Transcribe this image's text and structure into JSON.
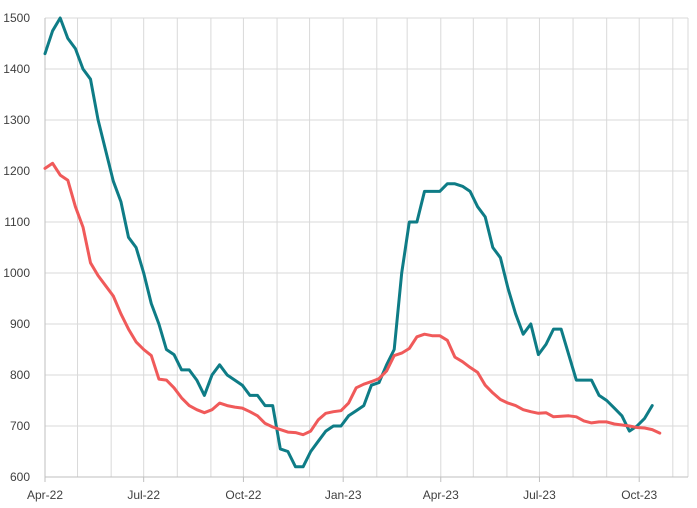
{
  "chart_data": {
    "type": "line",
    "title": "",
    "xlabel": "",
    "ylabel": "",
    "ylim": [
      600,
      1500
    ],
    "y_ticks": [
      600,
      700,
      800,
      900,
      1000,
      1100,
      1200,
      1300,
      1400,
      1500
    ],
    "x_range": [
      "2022-04-01",
      "2023-11-15"
    ],
    "x_ticks": [
      {
        "date": "2022-04-01",
        "label": "Apr-22"
      },
      {
        "date": "2022-07-01",
        "label": "Jul-22"
      },
      {
        "date": "2022-10-01",
        "label": "Oct-22"
      },
      {
        "date": "2023-01-01",
        "label": "Jan-23"
      },
      {
        "date": "2023-04-01",
        "label": "Apr-23"
      },
      {
        "date": "2023-07-01",
        "label": "Jul-23"
      },
      {
        "date": "2023-10-01",
        "label": "Oct-23"
      }
    ],
    "grid": true,
    "legend": "none",
    "series": [
      {
        "color": "#0e7c86",
        "points": [
          [
            "2022-04-01",
            1430
          ],
          [
            "2022-04-08",
            1475
          ],
          [
            "2022-04-15",
            1500
          ],
          [
            "2022-04-22",
            1460
          ],
          [
            "2022-04-29",
            1440
          ],
          [
            "2022-05-06",
            1400
          ],
          [
            "2022-05-13",
            1380
          ],
          [
            "2022-05-20",
            1300
          ],
          [
            "2022-05-27",
            1240
          ],
          [
            "2022-06-03",
            1180
          ],
          [
            "2022-06-10",
            1140
          ],
          [
            "2022-06-17",
            1070
          ],
          [
            "2022-06-24",
            1050
          ],
          [
            "2022-07-01",
            1000
          ],
          [
            "2022-07-08",
            940
          ],
          [
            "2022-07-15",
            900
          ],
          [
            "2022-07-22",
            850
          ],
          [
            "2022-07-29",
            840
          ],
          [
            "2022-08-05",
            810
          ],
          [
            "2022-08-12",
            810
          ],
          [
            "2022-08-19",
            790
          ],
          [
            "2022-08-26",
            760
          ],
          [
            "2022-09-02",
            800
          ],
          [
            "2022-09-09",
            820
          ],
          [
            "2022-09-16",
            800
          ],
          [
            "2022-09-23",
            790
          ],
          [
            "2022-09-30",
            780
          ],
          [
            "2022-10-07",
            760
          ],
          [
            "2022-10-14",
            760
          ],
          [
            "2022-10-21",
            740
          ],
          [
            "2022-10-28",
            740
          ],
          [
            "2022-11-04",
            655
          ],
          [
            "2022-11-11",
            650
          ],
          [
            "2022-11-18",
            620
          ],
          [
            "2022-11-25",
            620
          ],
          [
            "2022-12-02",
            650
          ],
          [
            "2022-12-09",
            670
          ],
          [
            "2022-12-16",
            690
          ],
          [
            "2022-12-23",
            700
          ],
          [
            "2022-12-30",
            700
          ],
          [
            "2023-01-06",
            720
          ],
          [
            "2023-01-13",
            730
          ],
          [
            "2023-01-20",
            740
          ],
          [
            "2023-01-27",
            780
          ],
          [
            "2023-02-03",
            785
          ],
          [
            "2023-02-10",
            820
          ],
          [
            "2023-02-17",
            850
          ],
          [
            "2023-02-24",
            1000
          ],
          [
            "2023-03-03",
            1100
          ],
          [
            "2023-03-10",
            1100
          ],
          [
            "2023-03-17",
            1160
          ],
          [
            "2023-03-24",
            1160
          ],
          [
            "2023-03-31",
            1160
          ],
          [
            "2023-04-07",
            1175
          ],
          [
            "2023-04-14",
            1175
          ],
          [
            "2023-04-21",
            1170
          ],
          [
            "2023-04-28",
            1160
          ],
          [
            "2023-05-05",
            1130
          ],
          [
            "2023-05-12",
            1110
          ],
          [
            "2023-05-19",
            1050
          ],
          [
            "2023-05-26",
            1030
          ],
          [
            "2023-06-02",
            970
          ],
          [
            "2023-06-09",
            920
          ],
          [
            "2023-06-16",
            880
          ],
          [
            "2023-06-23",
            900
          ],
          [
            "2023-06-30",
            840
          ],
          [
            "2023-07-07",
            860
          ],
          [
            "2023-07-14",
            890
          ],
          [
            "2023-07-21",
            890
          ],
          [
            "2023-07-28",
            840
          ],
          [
            "2023-08-04",
            790
          ],
          [
            "2023-08-11",
            790
          ],
          [
            "2023-08-18",
            790
          ],
          [
            "2023-08-25",
            760
          ],
          [
            "2023-09-01",
            750
          ],
          [
            "2023-09-08",
            735
          ],
          [
            "2023-09-15",
            720
          ],
          [
            "2023-09-22",
            690
          ],
          [
            "2023-09-29",
            700
          ],
          [
            "2023-10-06",
            715
          ],
          [
            "2023-10-13",
            740
          ]
        ]
      },
      {
        "color": "#f05a5a",
        "points": [
          [
            "2022-04-01",
            1205
          ],
          [
            "2022-04-08",
            1215
          ],
          [
            "2022-04-15",
            1192
          ],
          [
            "2022-04-22",
            1182
          ],
          [
            "2022-04-29",
            1130
          ],
          [
            "2022-05-06",
            1090
          ],
          [
            "2022-05-13",
            1020
          ],
          [
            "2022-05-20",
            995
          ],
          [
            "2022-05-27",
            975
          ],
          [
            "2022-06-03",
            955
          ],
          [
            "2022-06-10",
            920
          ],
          [
            "2022-06-17",
            890
          ],
          [
            "2022-06-24",
            865
          ],
          [
            "2022-07-01",
            850
          ],
          [
            "2022-07-08",
            838
          ],
          [
            "2022-07-15",
            792
          ],
          [
            "2022-07-22",
            790
          ],
          [
            "2022-07-29",
            775
          ],
          [
            "2022-08-05",
            755
          ],
          [
            "2022-08-12",
            740
          ],
          [
            "2022-08-19",
            732
          ],
          [
            "2022-08-26",
            726
          ],
          [
            "2022-09-02",
            732
          ],
          [
            "2022-09-09",
            745
          ],
          [
            "2022-09-16",
            740
          ],
          [
            "2022-09-23",
            737
          ],
          [
            "2022-09-30",
            735
          ],
          [
            "2022-10-07",
            728
          ],
          [
            "2022-10-14",
            720
          ],
          [
            "2022-10-21",
            705
          ],
          [
            "2022-10-28",
            698
          ],
          [
            "2022-11-04",
            693
          ],
          [
            "2022-11-11",
            688
          ],
          [
            "2022-11-18",
            687
          ],
          [
            "2022-11-25",
            683
          ],
          [
            "2022-12-02",
            690
          ],
          [
            "2022-12-09",
            712
          ],
          [
            "2022-12-16",
            725
          ],
          [
            "2022-12-23",
            728
          ],
          [
            "2022-12-30",
            730
          ],
          [
            "2023-01-06",
            745
          ],
          [
            "2023-01-13",
            775
          ],
          [
            "2023-01-20",
            782
          ],
          [
            "2023-01-27",
            787
          ],
          [
            "2023-02-03",
            793
          ],
          [
            "2023-02-10",
            808
          ],
          [
            "2023-02-17",
            838
          ],
          [
            "2023-02-24",
            843
          ],
          [
            "2023-03-03",
            852
          ],
          [
            "2023-03-10",
            875
          ],
          [
            "2023-03-17",
            880
          ],
          [
            "2023-03-24",
            877
          ],
          [
            "2023-03-31",
            877
          ],
          [
            "2023-04-07",
            868
          ],
          [
            "2023-04-14",
            835
          ],
          [
            "2023-04-21",
            826
          ],
          [
            "2023-04-28",
            815
          ],
          [
            "2023-05-05",
            805
          ],
          [
            "2023-05-12",
            780
          ],
          [
            "2023-05-19",
            765
          ],
          [
            "2023-05-26",
            752
          ],
          [
            "2023-06-02",
            745
          ],
          [
            "2023-06-09",
            740
          ],
          [
            "2023-06-16",
            732
          ],
          [
            "2023-06-23",
            728
          ],
          [
            "2023-06-30",
            725
          ],
          [
            "2023-07-07",
            726
          ],
          [
            "2023-07-14",
            718
          ],
          [
            "2023-07-21",
            719
          ],
          [
            "2023-07-28",
            720
          ],
          [
            "2023-08-04",
            718
          ],
          [
            "2023-08-11",
            710
          ],
          [
            "2023-08-18",
            706
          ],
          [
            "2023-08-25",
            708
          ],
          [
            "2023-09-01",
            708
          ],
          [
            "2023-09-08",
            704
          ],
          [
            "2023-09-15",
            702
          ],
          [
            "2023-09-22",
            700
          ],
          [
            "2023-09-29",
            697
          ],
          [
            "2023-10-06",
            696
          ],
          [
            "2023-10-13",
            693
          ],
          [
            "2023-10-20",
            686
          ]
        ]
      }
    ]
  }
}
